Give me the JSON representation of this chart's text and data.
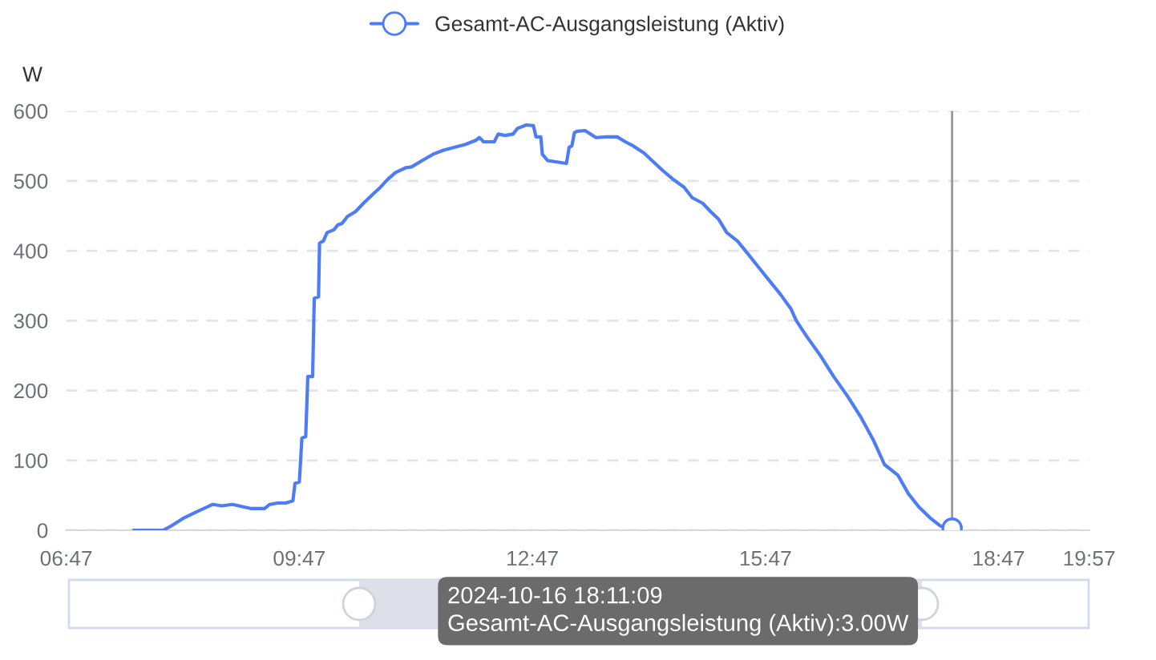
{
  "chart_data": {
    "type": "line",
    "series": [
      {
        "name": "Gesamt-AC-Ausgangsleistung (Aktiv)",
        "color": "#4e7cf6",
        "x": [
          7.65,
          8.03,
          8.133,
          8.304,
          8.475,
          8.669,
          8.785,
          8.923,
          9.165,
          9.336,
          9.404,
          9.507,
          9.61,
          9.701,
          9.728,
          9.784,
          9.817,
          9.866,
          9.893,
          9.955,
          9.976,
          10.031,
          10.044,
          10.093,
          10.141,
          10.229,
          10.279,
          10.333,
          10.403,
          10.506,
          10.609,
          10.712,
          10.828,
          10.919,
          11.022,
          11.158,
          11.228,
          11.364,
          11.503,
          11.641,
          11.777,
          11.915,
          12.054,
          12.101,
          12.157,
          12.293,
          12.343,
          12.431,
          12.535,
          12.59,
          12.706,
          12.797,
          12.83,
          12.892,
          12.912,
          12.982,
          13.222,
          13.257,
          13.292,
          13.325,
          13.36,
          13.463,
          13.601,
          13.738,
          13.876,
          13.979,
          14.082,
          14.22,
          14.324,
          14.46,
          14.598,
          14.736,
          14.84,
          14.976,
          15.079,
          15.182,
          15.285,
          15.423,
          15.562,
          15.698,
          15.836,
          15.974,
          16.111,
          16.181,
          16.317,
          16.49,
          16.662,
          16.833,
          17.006,
          17.177,
          17.316,
          17.487,
          17.625,
          17.761,
          17.9,
          18.038,
          18.186
        ],
        "values": [
          0,
          0,
          6,
          18,
          27,
          37,
          35,
          37,
          31,
          31,
          37,
          39,
          39,
          42,
          67,
          69,
          132,
          134,
          220,
          220,
          332,
          334,
          411,
          414,
          426,
          430,
          437,
          439,
          449,
          456,
          468,
          479,
          491,
          502,
          512,
          519,
          520,
          529,
          538,
          544,
          548,
          552,
          558,
          562,
          556,
          556,
          567,
          565,
          567,
          575,
          580,
          579,
          563,
          563,
          538,
          529,
          525,
          548,
          550,
          569,
          571,
          572,
          562,
          563,
          563,
          556,
          550,
          540,
          529,
          515,
          502,
          491,
          476,
          468,
          456,
          445,
          426,
          414,
          395,
          376,
          357,
          338,
          317,
          300,
          277,
          250,
          220,
          193,
          163,
          128,
          94,
          79,
          52,
          33,
          18,
          6,
          3
        ]
      },
      {
        "type": "scatter",
        "color": "#4e7cf6",
        "marker": "circle",
        "x": [
          18.186
        ],
        "values": [
          3
        ]
      }
    ],
    "ylabel": "W",
    "xlim": [
      6.7833,
      19.95
    ],
    "xticks": [
      {
        "value": 6.7833,
        "label": "06:47"
      },
      {
        "value": 9.7833,
        "label": "09:47"
      },
      {
        "value": 12.7833,
        "label": "12:47"
      },
      {
        "value": 15.7833,
        "label": "15:47"
      },
      {
        "value": 18.7833,
        "label": "18:47"
      },
      {
        "value": 19.95,
        "label": "19:57"
      }
    ],
    "ylim": [
      0,
      600
    ],
    "yticks": [
      0,
      100,
      200,
      300,
      400,
      500,
      600
    ],
    "grid": "y",
    "legend": "top",
    "ref_lines": [
      {
        "axis": "x",
        "value": 18.186,
        "color": "#999999"
      }
    ],
    "annotations": [
      "2024-10-16 18:11:09\nGesamt-AC-Ausgangsleistung (Aktiv):3.00W"
    ]
  }
}
